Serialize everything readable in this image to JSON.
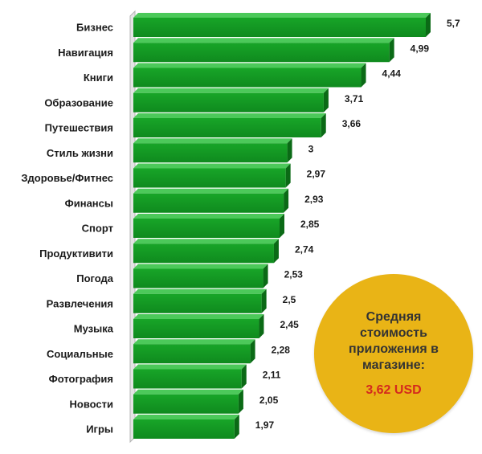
{
  "colors": {
    "bar_front": "#18a528",
    "bar_front_dark": "#0f8a1e",
    "bar_side": "#0b6a16",
    "bar_top": "#4cc95a",
    "axis": "#b5b5b5",
    "badge": "#e9b416",
    "badge_value": "#d42a1e"
  },
  "chart_data": {
    "type": "bar",
    "orientation": "horizontal",
    "style": "3d",
    "categories": [
      "Бизнес",
      "Навигация",
      "Книги",
      "Образование",
      "Путешествия",
      "Стиль жизни",
      "Здоровье/Фитнес",
      "Финансы",
      "Спорт",
      "Продуктивити",
      "Погода",
      "Развлечения",
      "Музыка",
      "Социальные",
      "Фотография",
      "Новости",
      "Игры"
    ],
    "values": [
      5.7,
      4.99,
      4.44,
      3.71,
      3.66,
      3,
      2.97,
      2.93,
      2.85,
      2.74,
      2.53,
      2.5,
      2.45,
      2.28,
      2.11,
      2.05,
      1.97
    ],
    "value_labels": [
      "5,7",
      "4,99",
      "4,44",
      "3,71",
      "3,66",
      "3",
      "2,97",
      "2,93",
      "2,85",
      "2,74",
      "2,53",
      "2,5",
      "2,45",
      "2,28",
      "2,11",
      "2,05",
      "1,97"
    ],
    "xlim": [
      0,
      5.7
    ],
    "grid": false,
    "legend": "none"
  },
  "badge": {
    "text": "Средняя стоимость приложения в магазине:",
    "value": "3,62 USD"
  }
}
